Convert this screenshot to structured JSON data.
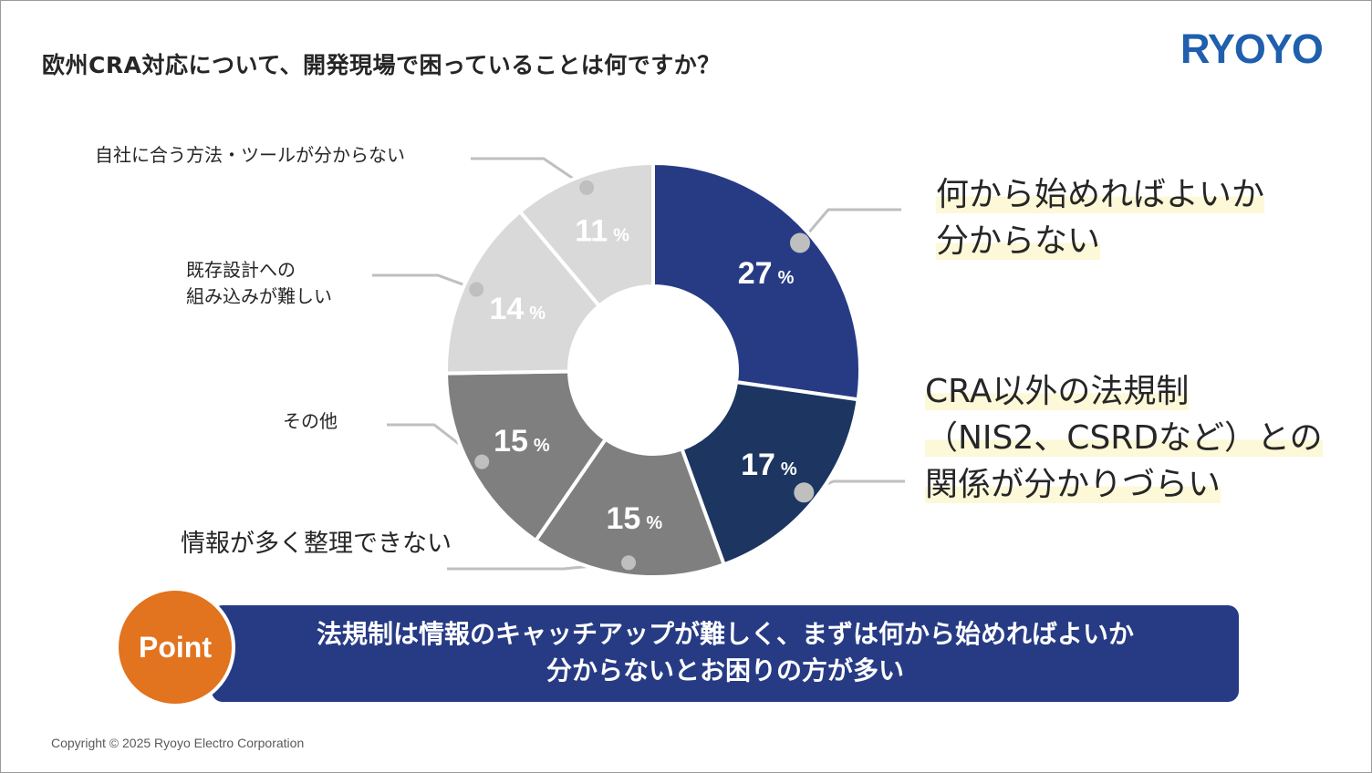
{
  "title": "欧州CRA対応について、開発現場で困っていることは何ですか？",
  "logo": "RYOYO",
  "colors": {
    "accent": "#273b85",
    "point_badge": "#e2731f",
    "logo": "#1f5fad"
  },
  "chart_data": {
    "type": "pie",
    "style": "donut",
    "unit": "%",
    "slices": [
      {
        "label": "何から始めればよいか分からない",
        "value": 27,
        "color": "#273b85"
      },
      {
        "label": "CRA以外の法規制（NIS2、CSRDなど）との関係が分かりづらい",
        "value": 17,
        "color": "#1c3561"
      },
      {
        "label": "情報が多く整理できない",
        "value": 15,
        "color": "#7f7f7f"
      },
      {
        "label": "その他",
        "value": 15,
        "color": "#7f7f7f"
      },
      {
        "label": "既存設計への組み込みが難しい",
        "value": 14,
        "color": "#d9d9d9"
      },
      {
        "label": "自社に合う方法・ツールが分からない",
        "value": 11,
        "color": "#d9d9d9"
      }
    ]
  },
  "labels": {
    "s0_l1": "何から始めればよいか",
    "s0_l2": "分からない",
    "s1_l1": "CRA以外の法規制",
    "s1_l2": "（NIS2、CSRDなど）との",
    "s1_l3": "関係が分かりづらい",
    "s2": "情報が多く整理できない",
    "s3": "その他",
    "s4_l1": "既存設計への",
    "s4_l2": "組み込みが難しい",
    "s5": "自社に合う方法・ツールが分からない"
  },
  "point": {
    "badge": "Point",
    "line1": "法規制は情報のキャッチアップが難しく、まずは何から始めればよいか",
    "line2": "分からないとお困りの方が多い"
  },
  "copyright": "Copyright © 2025 Ryoyo Electro Corporation"
}
